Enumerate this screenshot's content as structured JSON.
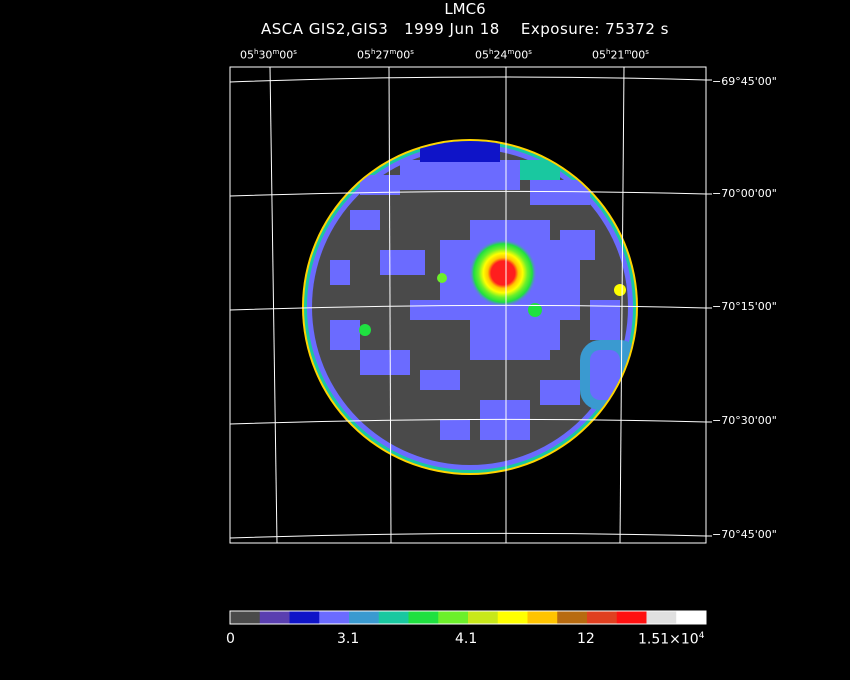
{
  "header": {
    "object": "LMC6",
    "info": "ASCA GIS2,GIS3   1999 Jun 18    Exposure: 75372 s"
  },
  "ra_ticks": [
    {
      "h": "05",
      "hs": "h",
      "m": "30",
      "ms": "m",
      "s": "00",
      "ss": "s"
    },
    {
      "h": "05",
      "hs": "h",
      "m": "27",
      "ms": "m",
      "s": "00",
      "ss": "s"
    },
    {
      "h": "05",
      "hs": "h",
      "m": "24",
      "ms": "m",
      "s": "00",
      "ss": "s"
    },
    {
      "h": "05",
      "hs": "h",
      "m": "21",
      "ms": "m",
      "s": "00",
      "ss": "s"
    }
  ],
  "dec_ticks": [
    "−69°45'00\"",
    "−70°00'00\"",
    "−70°15'00\"",
    "−70°30'00\"",
    "−70°45'00\""
  ],
  "colorbar": {
    "labels": [
      "0",
      "3.1",
      "4.1",
      "12",
      "1.51×10"
    ],
    "exponent": "4",
    "colors": [
      "#4a4a4a",
      "#5a3fb0",
      "#0f14c8",
      "#6b6bff",
      "#3a9ad0",
      "#19c8a0",
      "#1fe040",
      "#6cf02a",
      "#c8e81a",
      "#ffff00",
      "#ffc400",
      "#b86b10",
      "#e04020",
      "#ff1010",
      "#e0e0e0",
      "#ffffff"
    ]
  },
  "image": {
    "description_colors": {
      "background": "#4a4a4a",
      "rim": "#6b6bff",
      "source_core": "#ff1e1e",
      "grid": "#ffffff"
    }
  }
}
